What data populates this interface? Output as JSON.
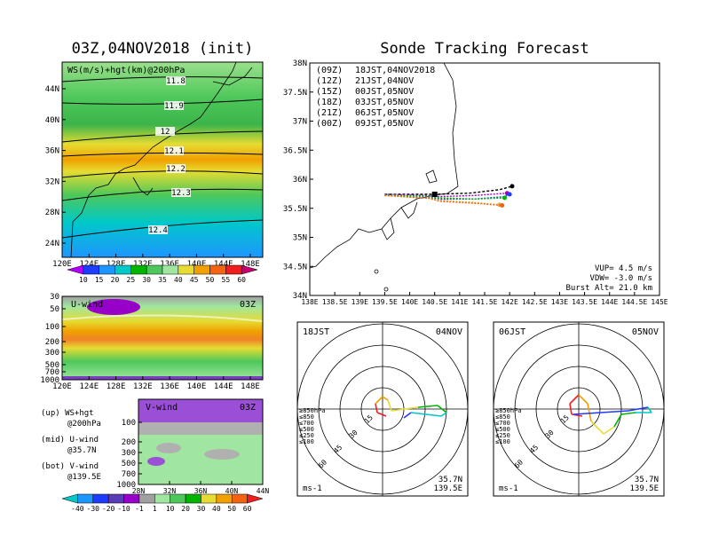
{
  "left": {
    "title": "03Z,04NOV2018 (init)",
    "map": {
      "label": "WS(m/s)+hgt(km)@200hPa",
      "lat_ticks": [
        "44N",
        "40N",
        "36N",
        "32N",
        "28N",
        "24N"
      ],
      "lon_ticks": [
        "120E",
        "124E",
        "128E",
        "132E",
        "136E",
        "140E",
        "144E",
        "148E"
      ],
      "contours": [
        "11.8",
        "11.9",
        "12",
        "12.1",
        "12.2",
        "12.3",
        "12.4"
      ],
      "colorbar_labels": [
        "10",
        "15",
        "20",
        "25",
        "30",
        "35",
        "40",
        "45",
        "50",
        "55",
        "60"
      ]
    },
    "uwind": {
      "label": "U-wind",
      "time": "03Z",
      "p_ticks": [
        "30",
        "50",
        "100",
        "200",
        "300",
        "500",
        "700",
        "1000"
      ],
      "lon_ticks": [
        "120E",
        "124E",
        "128E",
        "132E",
        "136E",
        "140E",
        "144E",
        "148E"
      ]
    },
    "vwind": {
      "label": "V-wind",
      "time": "03Z",
      "p_ticks": [
        "100",
        "200",
        "300",
        "500",
        "700",
        "1000"
      ],
      "lat_ticks": [
        "28N",
        "32N",
        "36N",
        "40N",
        "44N"
      ],
      "colorbar_labels": [
        "-40",
        "-30",
        "-20",
        "-10",
        "-1",
        "1",
        "10",
        "20",
        "30",
        "40",
        "50",
        "60"
      ]
    },
    "notes": [
      {
        "head": "(up) WS+hgt",
        "sub": "@200hPa"
      },
      {
        "head": "(mid) U-wind",
        "sub": "@35.7N"
      },
      {
        "head": "(bot) V-wind",
        "sub": "@139.5E"
      }
    ]
  },
  "right": {
    "title": "Sonde Tracking Forecast",
    "lat_ticks": [
      "38N",
      "37.5N",
      "37N",
      "36.5N",
      "36N",
      "35.5N",
      "35N",
      "34.5N",
      "34N"
    ],
    "lon_ticks": [
      "138E",
      "138.5E",
      "139E",
      "139.5E",
      "140E",
      "140.5E",
      "141E",
      "141.5E",
      "142E",
      "142.5E",
      "143E",
      "143.5E",
      "144E",
      "144.5E",
      "145E"
    ],
    "legend": [
      {
        "code": "(09Z)",
        "label": "18JST,04NOV2018",
        "color": "#000000"
      },
      {
        "code": "(12Z)",
        "label": "21JST,04NOV",
        "color": "#a000c8"
      },
      {
        "code": "(15Z)",
        "label": "00JST,05NOV",
        "color": "#1e3cff"
      },
      {
        "code": "(18Z)",
        "label": "03JST,05NOV",
        "color": "#00b400"
      },
      {
        "code": "(21Z)",
        "label": "06JST,05NOV",
        "color": "#e6af2d"
      },
      {
        "code": "(00Z)",
        "label": "09JST,05NOV",
        "color": "#f06414"
      }
    ],
    "params": {
      "vup": "VUP= 4.5 m/s",
      "vdw": "VDW= -3.0 m/s",
      "burst": "Burst Alt= 21.0 km"
    }
  },
  "hodographs": [
    {
      "time": "18JST",
      "date": "04NOV",
      "ring_labels": [
        "15",
        "30",
        "45",
        "60"
      ],
      "unit": "ms-1",
      "lat": "35.7N",
      "lon": "139.5E",
      "levels": [
        {
          "label": "≥850hPa",
          "color": "#f01e1e"
        },
        {
          "label": "≤850",
          "color": "#f0a000"
        },
        {
          "label": "≤700",
          "color": "#e6dc32"
        },
        {
          "label": "≤500",
          "color": "#00b400"
        },
        {
          "label": "≤250",
          "color": "#00c8c8"
        },
        {
          "label": "≤100",
          "color": "#1e3cff"
        }
      ]
    },
    {
      "time": "06JST",
      "date": "05NOV",
      "ring_labels": [
        "15",
        "30",
        "45",
        "60"
      ],
      "unit": "ms-1",
      "lat": "35.7N",
      "lon": "139.5E",
      "levels": [
        {
          "label": "≥850hPa",
          "color": "#f01e1e"
        },
        {
          "label": "≤850",
          "color": "#f0a000"
        },
        {
          "label": "≤700",
          "color": "#e6dc32"
        },
        {
          "label": "≤500",
          "color": "#00b400"
        },
        {
          "label": "≤250",
          "color": "#00c8c8"
        },
        {
          "label": "≤100",
          "color": "#1e3cff"
        }
      ]
    }
  ],
  "chart_data": [
    {
      "type": "heatmap",
      "title": "03Z,04NOV2018 (init)",
      "label": "WS(m/s)+hgt(km)@200hPa",
      "x_range": [
        "120E",
        "148E"
      ],
      "y_range": [
        "24N",
        "44N"
      ],
      "contour_values": [
        11.8,
        11.9,
        12,
        12.1,
        12.2,
        12.3,
        12.4
      ],
      "colorbar": [
        10,
        15,
        20,
        25,
        30,
        35,
        40,
        45,
        50,
        55,
        60
      ]
    },
    {
      "type": "heatmap",
      "label": "U-wind",
      "x_range": [
        "120E",
        "148E"
      ],
      "y_levels_hPa": [
        30,
        50,
        100,
        200,
        300,
        500,
        700,
        1000
      ]
    },
    {
      "type": "heatmap",
      "label": "V-wind",
      "x_range": [
        "28N",
        "44N"
      ],
      "y_levels_hPa": [
        100,
        200,
        300,
        500,
        700,
        1000
      ],
      "colorbar": [
        -40,
        -30,
        -20,
        -10,
        -1,
        1,
        10,
        20,
        30,
        40,
        50,
        60
      ]
    },
    {
      "type": "line",
      "title": "Sonde Tracking Forecast",
      "xlim": [
        138,
        145
      ],
      "ylim": [
        34,
        38
      ],
      "series": [
        {
          "name": "(09Z) 18JST,04NOV2018",
          "x": [
            139.5,
            140.5,
            141.2,
            141.8,
            142.05
          ],
          "y": [
            35.74,
            35.74,
            35.76,
            35.82,
            35.88
          ]
        },
        {
          "name": "(12Z) 21JST,04NOV",
          "x": [
            139.5,
            140.3,
            140.6,
            141.3,
            141.95
          ],
          "y": [
            35.74,
            35.72,
            35.7,
            35.72,
            35.76
          ]
        },
        {
          "name": "(15Z) 00JST,05NOV",
          "x": [
            139.5,
            140.4,
            140.6,
            141.3,
            141.9,
            142.0
          ],
          "y": [
            35.72,
            35.68,
            35.66,
            35.66,
            35.7,
            35.74
          ]
        },
        {
          "name": "(18Z) 03JST,05NOV",
          "x": [
            139.5,
            140.4,
            140.6,
            141.3,
            141.9
          ],
          "y": [
            35.73,
            35.7,
            35.68,
            35.66,
            35.68
          ]
        },
        {
          "name": "(21Z) 06JST,05NOV",
          "x": [
            139.5,
            140.4,
            140.6,
            141.3,
            141.8
          ],
          "y": [
            35.72,
            35.67,
            35.64,
            35.6,
            35.56
          ]
        },
        {
          "name": "(00Z) 09JST,05NOV",
          "x": [
            139.5,
            140.4,
            140.6,
            141.4,
            141.85
          ],
          "y": [
            35.72,
            35.67,
            35.62,
            35.58,
            35.55
          ]
        }
      ]
    }
  ]
}
